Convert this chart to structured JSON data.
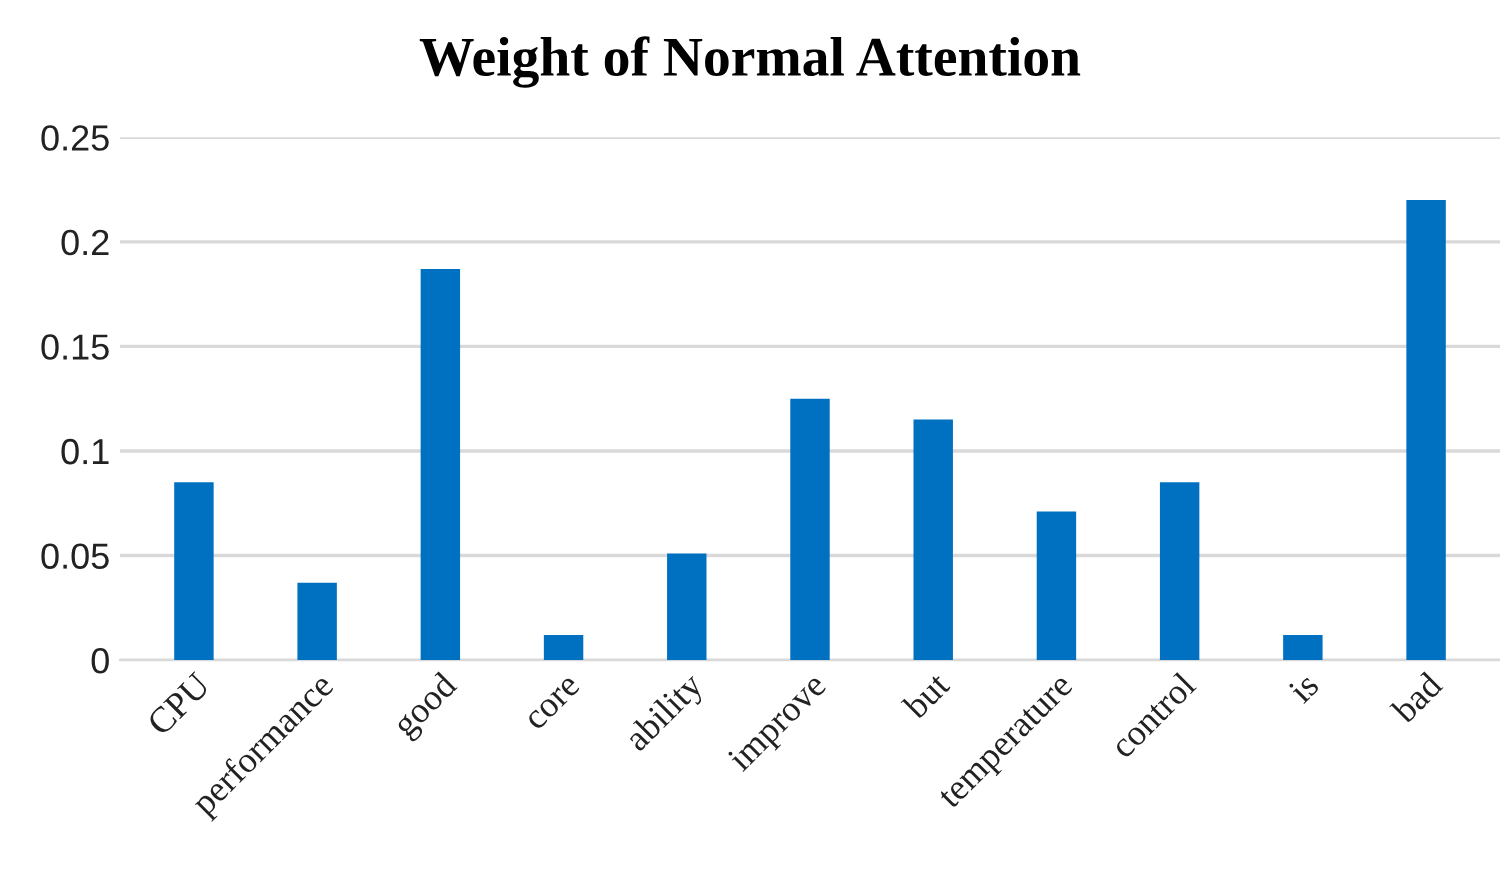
{
  "chart_data": {
    "type": "bar",
    "title": "Weight of Normal Attention",
    "categories": [
      "CPU",
      "performance",
      "good",
      "core",
      "ability",
      "improve",
      "but",
      "temperature",
      "control",
      "is",
      "bad"
    ],
    "values": [
      0.085,
      0.037,
      0.187,
      0.012,
      0.051,
      0.125,
      0.115,
      0.071,
      0.085,
      0.012,
      0.22
    ],
    "color": "#0070c0",
    "ylim": [
      0,
      0.25
    ],
    "yticks": [
      0,
      0.05,
      0.1,
      0.15,
      0.2,
      0.25
    ],
    "grid": "y",
    "legend": false
  }
}
